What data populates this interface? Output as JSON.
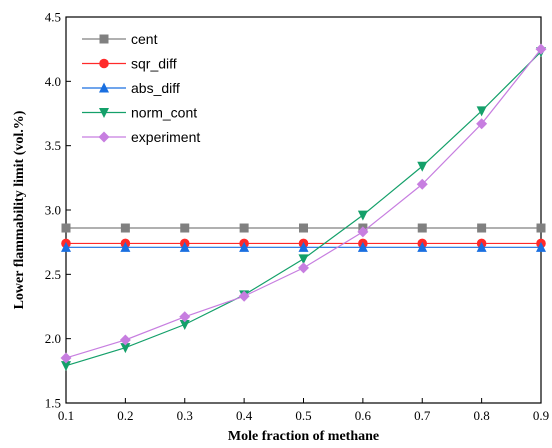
{
  "chart_data": {
    "type": "line",
    "xlabel": "Mole fraction of methane",
    "ylabel": "Lower flammability limit (vol.%)",
    "xlim": [
      0.1,
      0.9
    ],
    "ylim": [
      1.5,
      4.5
    ],
    "x_ticks": [
      "0.1",
      "0.2",
      "0.3",
      "0.4",
      "0.5",
      "0.6",
      "0.7",
      "0.8",
      "0.9"
    ],
    "y_ticks": [
      "1.5",
      "2.0",
      "2.5",
      "3.0",
      "3.5",
      "4.0",
      "4.5"
    ],
    "grid": false,
    "legend_position": "top-left",
    "x": [
      0.1,
      0.2,
      0.3,
      0.4,
      0.5,
      0.6,
      0.7,
      0.8,
      0.9
    ],
    "series": [
      {
        "name": "cent",
        "color": "#808080",
        "marker": "square",
        "values": [
          2.86,
          2.86,
          2.86,
          2.86,
          2.86,
          2.86,
          2.86,
          2.86,
          2.86
        ],
        "x": [
          0.1,
          0.2,
          0.3,
          0.4,
          0.5,
          0.6,
          0.7,
          0.8,
          0.9
        ]
      },
      {
        "name": "sqr_diff",
        "color": "#ff2a2a",
        "marker": "circle",
        "values": [
          2.74,
          2.74,
          2.74,
          2.74,
          2.74,
          2.74,
          2.74,
          2.74,
          2.74
        ],
        "x": [
          0.1,
          0.2,
          0.3,
          0.4,
          0.5,
          0.6,
          0.7,
          0.8,
          0.9
        ]
      },
      {
        "name": "abs_diff",
        "color": "#1a6fe0",
        "marker": "triangle-up",
        "values": [
          2.71,
          2.71,
          2.71,
          2.71,
          2.71,
          2.71,
          2.71,
          2.71,
          2.71
        ],
        "x": [
          0.1,
          0.2,
          0.3,
          0.4,
          0.5,
          0.6,
          0.7,
          0.8,
          0.9
        ]
      },
      {
        "name": "norm_cont",
        "color": "#14a06a",
        "marker": "triangle-down",
        "values": [
          1.79,
          1.93,
          2.11,
          2.34,
          2.62,
          2.96,
          3.34,
          3.77,
          4.23
        ],
        "x": [
          0.1,
          0.2,
          0.3,
          0.4,
          0.5,
          0.6,
          0.7,
          0.8,
          0.9
        ]
      },
      {
        "name": "experiment",
        "color": "#c77ee0",
        "marker": "diamond",
        "values": [
          1.85,
          1.99,
          2.17,
          2.33,
          2.55,
          2.83,
          3.2,
          3.67,
          4.25
        ],
        "x": [
          0.1,
          0.2,
          0.3,
          0.4,
          0.5,
          0.6,
          0.7,
          0.8,
          0.9
        ]
      }
    ]
  }
}
